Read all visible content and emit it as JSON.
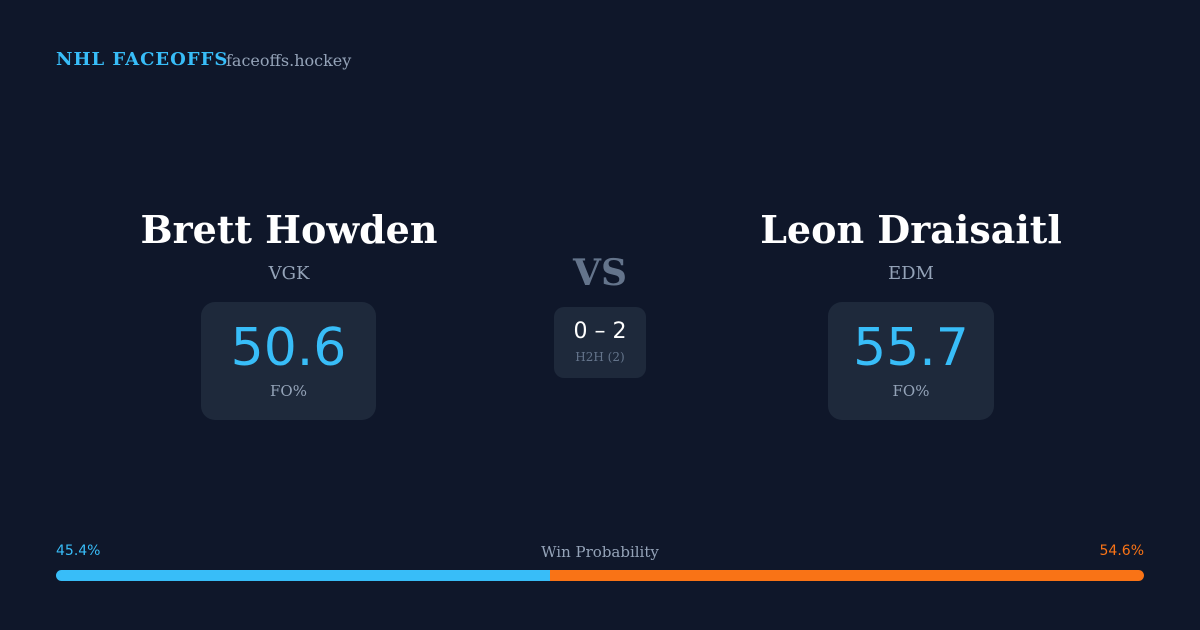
{
  "header": {
    "brand": "NHL FACEOFFS",
    "site": "faceoffs.hockey"
  },
  "players": [
    {
      "name": "Brett Howden",
      "team": "VGK",
      "fo_pct": "50.6",
      "fo_label": "FO%"
    },
    {
      "name": "Leon Draisaitl",
      "team": "EDM",
      "fo_pct": "55.7",
      "fo_label": "FO%"
    }
  ],
  "vs": "VS",
  "h2h": {
    "score": "0 – 2",
    "label": "H2H (2)"
  },
  "win_probability": {
    "label": "Win Probability",
    "left": {
      "value": 45.4,
      "label": "45.4%",
      "color": "#38bdf8"
    },
    "right": {
      "value": 54.6,
      "label": "54.6%",
      "color": "#f97316"
    }
  }
}
